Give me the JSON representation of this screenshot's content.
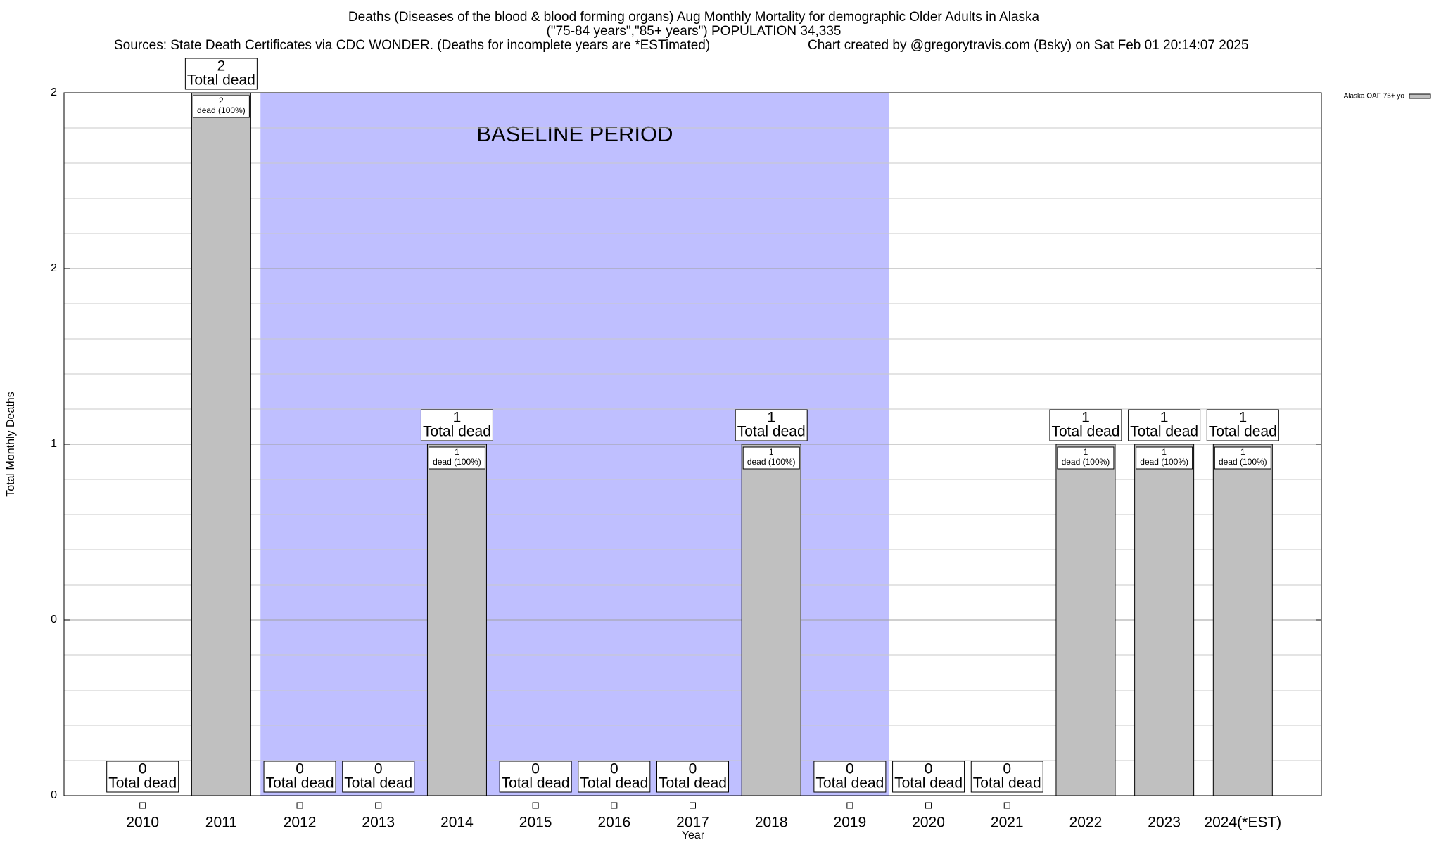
{
  "chart_data": {
    "type": "bar",
    "title": "Deaths (Diseases of the blood & blood forming organs) Aug Monthly Mortality for demographic Older Adults in Alaska",
    "subtitle": "(\"75-84 years\",\"85+ years\") POPULATION 34,335",
    "source": "Sources: State Death Certificates via CDC WONDER. (Deaths for incomplete years are *ESTimated)",
    "credit": "Chart created by @gregorytravis.com (Bsky) on Sat Feb 01 20:14:07 2025",
    "xlabel": "Year",
    "ylabel": "Total Monthly Deaths",
    "categories": [
      "2010",
      "2011",
      "2012",
      "2013",
      "2014",
      "2015",
      "2016",
      "2017",
      "2018",
      "2019",
      "2020",
      "2021",
      "2022",
      "2023",
      "2024(*EST)"
    ],
    "series": [
      {
        "name": "Alaska OAF 75+ yo",
        "color": "#c0c0c0",
        "values": [
          0,
          2,
          0,
          0,
          1,
          0,
          0,
          0,
          1,
          0,
          0,
          0,
          1,
          1,
          1
        ]
      }
    ],
    "total_label": "Total dead",
    "inner_label": "dead (100%)",
    "baseline": {
      "label": "BASELINE PERIOD",
      "start": "2012",
      "end": "2019",
      "color": "#bfbfff"
    },
    "ylim": [
      0,
      2
    ],
    "yticks": [
      0,
      {
        "value": 0.5,
        "label": "0"
      },
      1,
      {
        "value": 1.5,
        "label": "2"
      },
      2
    ],
    "yminorticks": [
      0.1,
      0.2,
      0.3,
      0.4,
      0.6,
      0.7,
      0.8,
      0.9,
      1.1,
      1.2,
      1.3,
      1.4,
      1.6,
      1.7,
      1.8,
      1.9
    ],
    "grid": true,
    "legend": "top-right"
  }
}
